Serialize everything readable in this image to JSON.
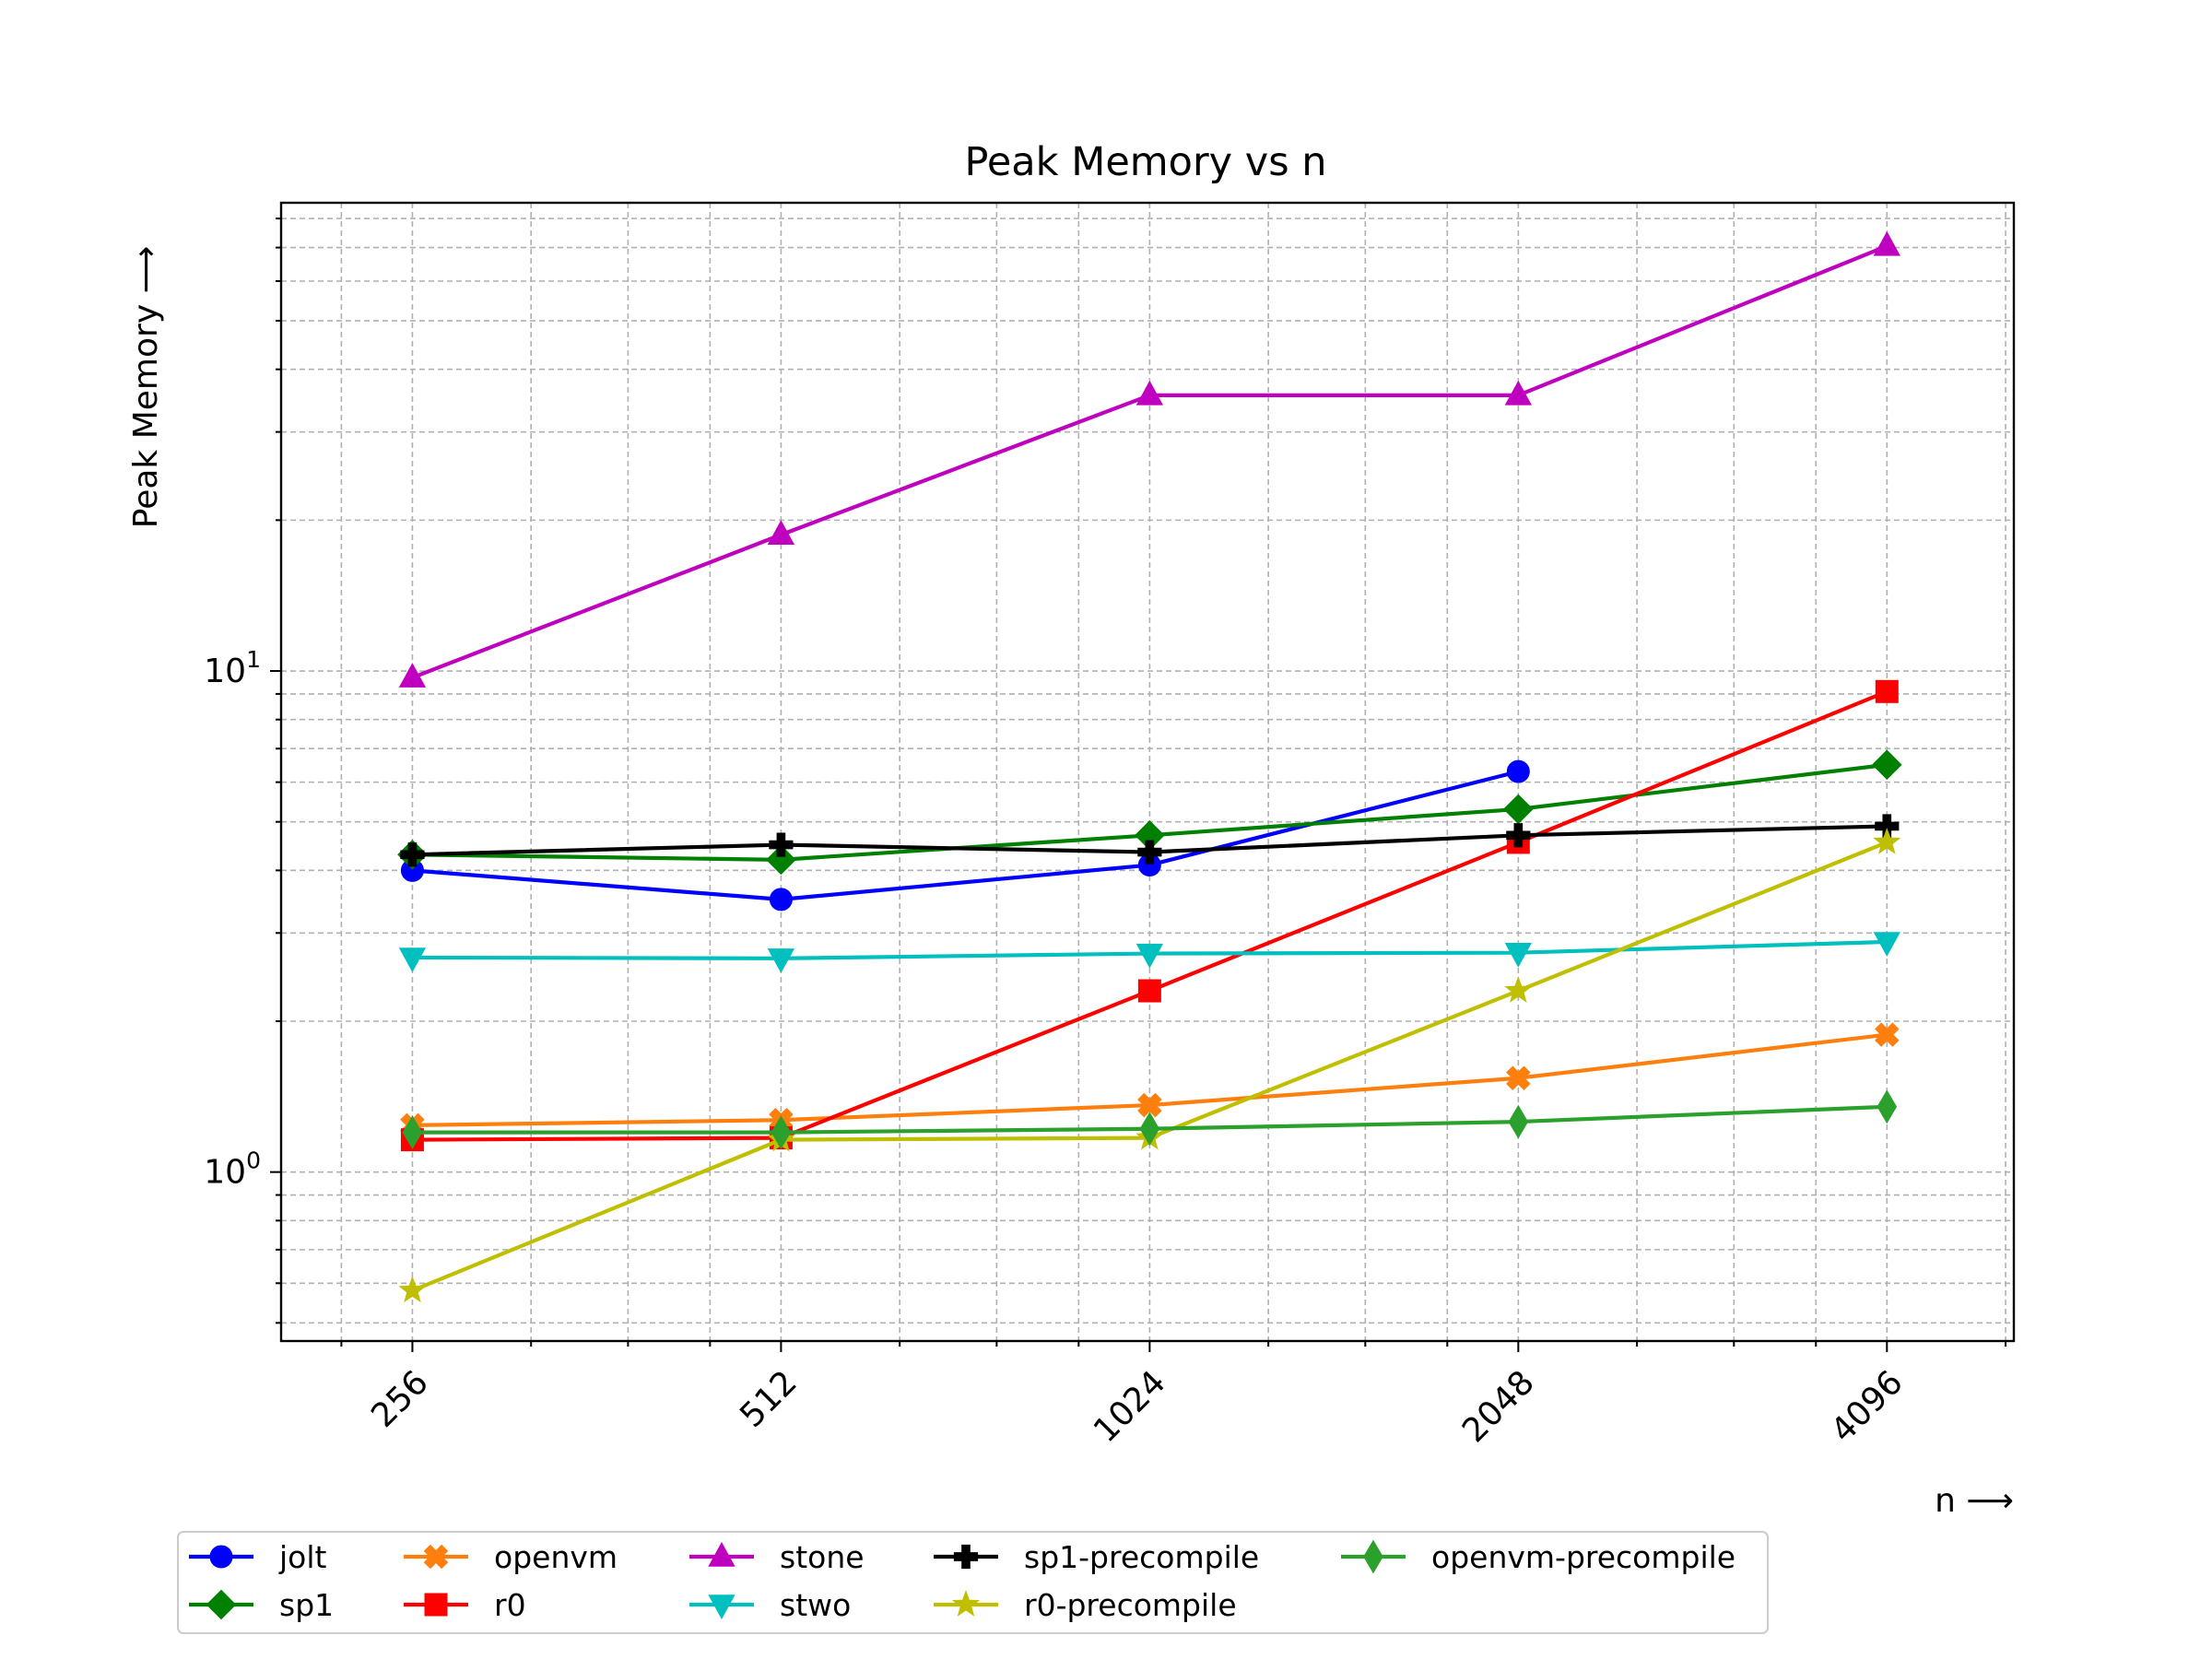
{
  "chart_data": {
    "type": "line",
    "title": "Peak Memory vs n",
    "xlabel": "n ⟶",
    "ylabel": "Peak Memory ⟶",
    "x_scale": "log2",
    "y_scale": "log10",
    "x": [
      256,
      512,
      1024,
      2048,
      4096
    ],
    "xlim": [
      200,
      5200
    ],
    "ylim": [
      0.46,
      86
    ],
    "y_major_tick_labels": [
      {
        "value": 1,
        "label": "10",
        "exp": "0"
      },
      {
        "value": 10,
        "label": "10",
        "exp": "1"
      }
    ],
    "grid": true,
    "legend_position": "bottom",
    "series": [
      {
        "name": "jolt",
        "color": "#0000ff",
        "marker": "circle",
        "values": [
          4.0,
          3.5,
          4.1,
          6.3,
          null
        ]
      },
      {
        "name": "sp1",
        "color": "#008000",
        "marker": "diamond",
        "values": [
          4.3,
          4.2,
          4.7,
          5.3,
          6.5
        ]
      },
      {
        "name": "openvm",
        "color": "#ff7f0e",
        "marker": "x-filled",
        "values": [
          1.24,
          1.27,
          1.36,
          1.54,
          1.88
        ]
      },
      {
        "name": "r0",
        "color": "#ff0000",
        "marker": "square",
        "values": [
          1.16,
          1.17,
          2.3,
          4.55,
          9.1
        ]
      },
      {
        "name": "stone",
        "color": "#bf00bf",
        "marker": "triangle-up",
        "values": [
          9.7,
          18.7,
          35.5,
          35.5,
          70.5
        ]
      },
      {
        "name": "stwo",
        "color": "#00bfbf",
        "marker": "triangle-down",
        "values": [
          2.68,
          2.67,
          2.73,
          2.74,
          2.88
        ]
      },
      {
        "name": "sp1-precompile",
        "color": "#000000",
        "marker": "plus-filled",
        "values": [
          4.3,
          4.5,
          4.35,
          4.7,
          4.9
        ]
      },
      {
        "name": "r0-precompile",
        "color": "#bfbf00",
        "marker": "star",
        "values": [
          0.58,
          1.16,
          1.17,
          2.3,
          4.55
        ]
      },
      {
        "name": "openvm-precompile",
        "color": "#2ca02c",
        "marker": "thin-diamond",
        "values": [
          1.2,
          1.2,
          1.22,
          1.26,
          1.35
        ]
      }
    ]
  }
}
